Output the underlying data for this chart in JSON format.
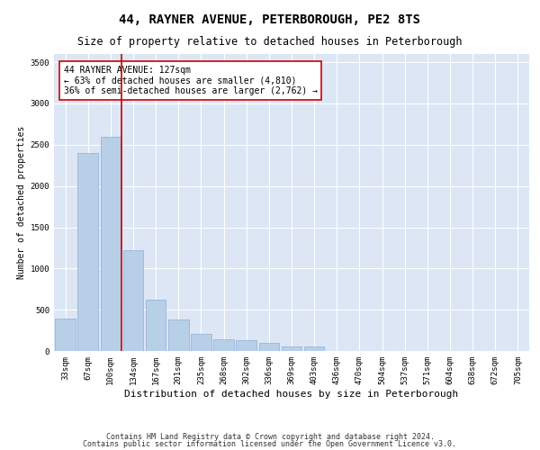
{
  "title": "44, RAYNER AVENUE, PETERBOROUGH, PE2 8TS",
  "subtitle": "Size of property relative to detached houses in Peterborough",
  "xlabel": "Distribution of detached houses by size in Peterborough",
  "ylabel": "Number of detached properties",
  "categories": [
    "33sqm",
    "67sqm",
    "100sqm",
    "134sqm",
    "167sqm",
    "201sqm",
    "235sqm",
    "268sqm",
    "302sqm",
    "336sqm",
    "369sqm",
    "403sqm",
    "436sqm",
    "470sqm",
    "504sqm",
    "537sqm",
    "571sqm",
    "604sqm",
    "638sqm",
    "672sqm",
    "705sqm"
  ],
  "values": [
    390,
    2400,
    2600,
    1220,
    620,
    380,
    210,
    140,
    130,
    100,
    60,
    50,
    0,
    0,
    0,
    0,
    0,
    0,
    0,
    0,
    0
  ],
  "bar_color": "#b8cfe8",
  "bar_edge_color": "#8aafd4",
  "vline_color": "#cc0000",
  "annotation_text": "44 RAYNER AVENUE: 127sqm\n← 63% of detached houses are smaller (4,810)\n36% of semi-detached houses are larger (2,762) →",
  "annotation_box_color": "#ffffff",
  "annotation_box_edge": "#cc0000",
  "ylim": [
    0,
    3600
  ],
  "yticks": [
    0,
    500,
    1000,
    1500,
    2000,
    2500,
    3000,
    3500
  ],
  "plot_bg_color": "#dce6f5",
  "footer1": "Contains HM Land Registry data © Crown copyright and database right 2024.",
  "footer2": "Contains public sector information licensed under the Open Government Licence v3.0.",
  "title_fontsize": 10,
  "subtitle_fontsize": 8.5,
  "xlabel_fontsize": 8,
  "ylabel_fontsize": 7,
  "tick_fontsize": 6.5,
  "footer_fontsize": 6,
  "annotation_fontsize": 7
}
